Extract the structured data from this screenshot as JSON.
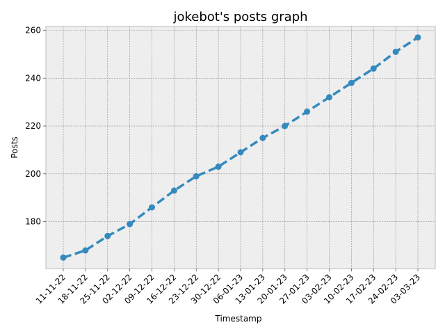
{
  "chart_data": {
    "type": "line",
    "title": "jokebot's posts graph",
    "xlabel": "Timestamp",
    "ylabel": "Posts",
    "categories": [
      "11-11-22",
      "18-11-22",
      "25-11-22",
      "02-12-22",
      "09-12-22",
      "16-12-22",
      "23-12-22",
      "30-12-22",
      "06-01-23",
      "13-01-23",
      "20-01-23",
      "27-01-23",
      "03-02-23",
      "10-02-23",
      "17-02-23",
      "24-02-23",
      "03-03-23"
    ],
    "series": [
      {
        "values": [
          165,
          168,
          174,
          179,
          186,
          193,
          199,
          203,
          209,
          215,
          220,
          226,
          232,
          238,
          244,
          251,
          257
        ]
      }
    ],
    "ylim": [
      160.4,
      261.6
    ],
    "yticks": [
      180,
      200,
      220,
      240,
      260
    ],
    "grid": true,
    "line_style": "dashed",
    "marker": "circle",
    "colors": {
      "line": "#348abd",
      "plot_background": "#eeeeee",
      "grid": "#888888",
      "spine": "#bcbcbc"
    }
  }
}
